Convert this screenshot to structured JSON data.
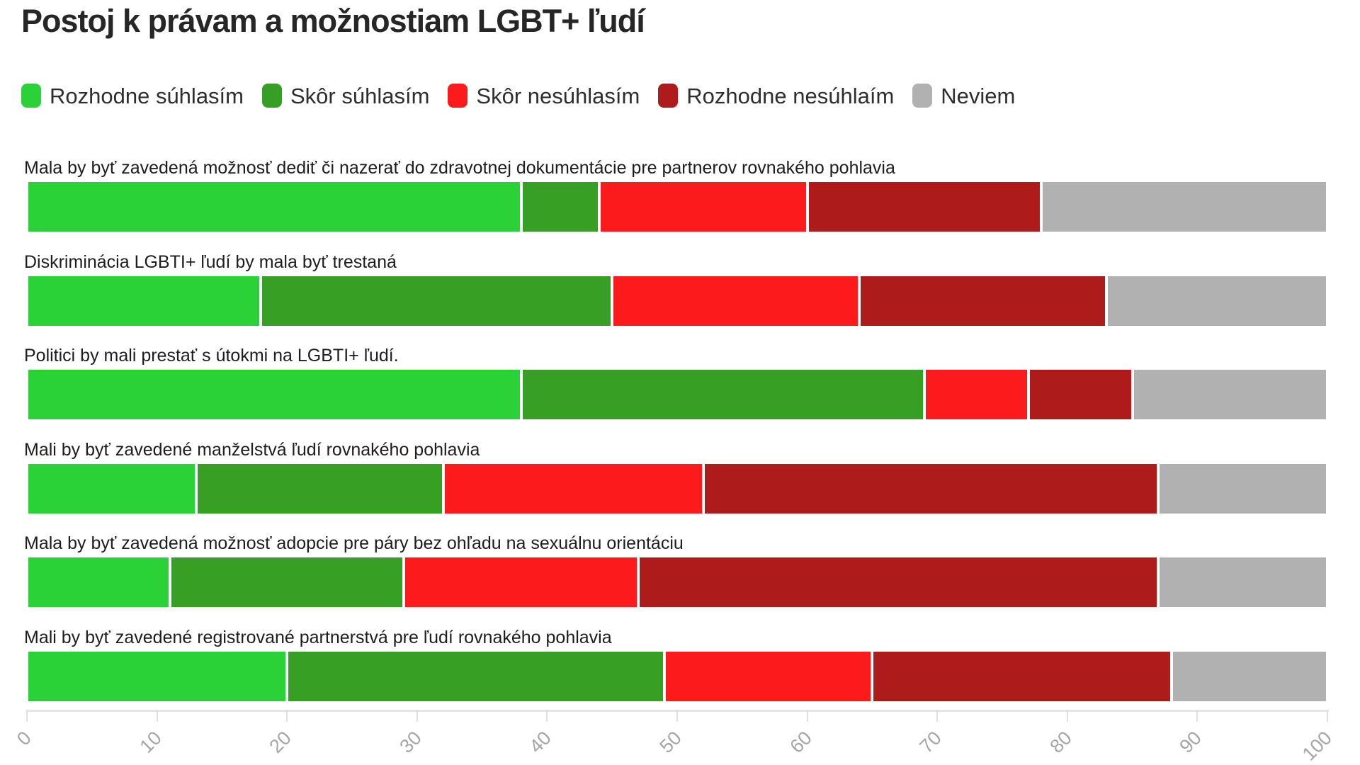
{
  "title": "Postoj k právam a možnostiam LGBT+ ľudí",
  "chart_data": {
    "type": "bar",
    "variant": "stacked-horizontal-100pct",
    "unit": "%",
    "title": "Postoj k právam a možnostiam LGBT+ ľudí",
    "legend_position": "top",
    "grid": false,
    "xlim": [
      0,
      100
    ],
    "x_ticks": [
      "0",
      "10",
      "20",
      "30",
      "40",
      "50",
      "60",
      "70",
      "80",
      "90",
      "100"
    ],
    "categories": [
      "Mala by byť zavedená možnosť dediť či nazerať do zdravotnej dokumentácie pre partnerov rovnakého pohlavia",
      "Diskriminácia LGBTI+ ľudí by mala byť trestaná",
      "Politici by mali prestať s útokmi na LGBTI+ ľudí.",
      "Mali by byť zavedené manželstvá ľudí rovnakého pohlavia",
      "Mala by byť zavedená možnosť adopcie pre páry bez ohľadu na sexuálnu orientáciu",
      "Mali by byť zavedené registrované partnerstvá pre ľudí rovnakého pohlavia"
    ],
    "series": [
      {
        "name": "Rozhodne súhlasím",
        "color": "#2bd237",
        "values": [
          38,
          18,
          38,
          13,
          11,
          20
        ]
      },
      {
        "name": "Skôr súhlasím",
        "color": "#37a024",
        "values": [
          6,
          27,
          31,
          19,
          18,
          29
        ]
      },
      {
        "name": "Skôr nesúhlasím",
        "color": "#fb1b1c",
        "values": [
          16,
          19,
          8,
          20,
          18,
          16
        ]
      },
      {
        "name": "Rozhodne nesúhlaím",
        "color": "#ae1b1b",
        "values": [
          18,
          19,
          8,
          35,
          40,
          23
        ]
      },
      {
        "name": "Neviem",
        "color": "#b1b1b1",
        "values": [
          22,
          17,
          15,
          13,
          13,
          12
        ]
      }
    ]
  }
}
